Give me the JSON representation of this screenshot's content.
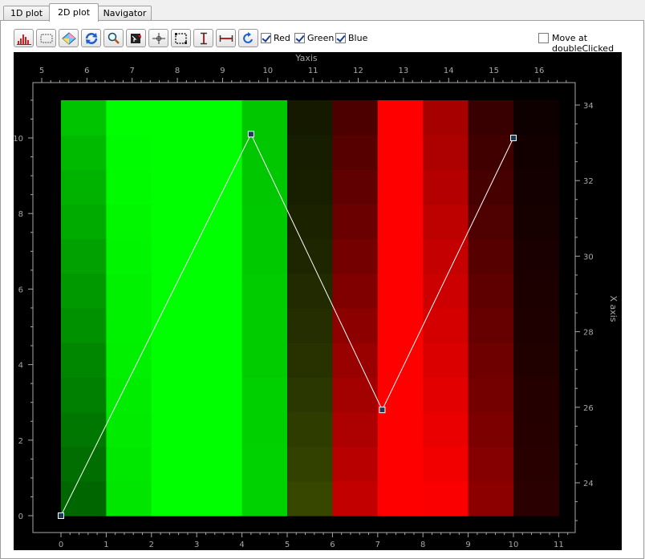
{
  "tabs": [
    {
      "label": "1D plot"
    },
    {
      "label": "2D plot"
    },
    {
      "label": "Navigator"
    }
  ],
  "active_tab": "2D plot",
  "toolbar": {
    "tools": [
      "histogram-icon",
      "selection-rect-icon",
      "color-palette-icon",
      "refresh-icon",
      "zoom-icon",
      "fit-view-icon",
      "crosshair-icon",
      "roi-rect-icon",
      "vertical-cursor-icon",
      "horizontal-cursor-icon",
      "redraw-icon"
    ],
    "channels": [
      {
        "label": "Red",
        "checked": true
      },
      {
        "label": "Green",
        "checked": true
      },
      {
        "label": "Blue",
        "checked": true
      }
    ],
    "move_option": {
      "label": "Move at doubleClicked",
      "checked": false
    }
  },
  "plot": {
    "top_axis": {
      "label": "Yaxis",
      "ticks": [
        "5",
        "6",
        "7",
        "8",
        "9",
        "10",
        "11",
        "12",
        "13",
        "14",
        "15",
        "16"
      ]
    },
    "bottom_axis": {
      "ticks": [
        "0",
        "1",
        "2",
        "3",
        "4",
        "5",
        "6",
        "7",
        "8",
        "9",
        "10",
        "11"
      ]
    },
    "left_axis": {
      "ticks": [
        "0",
        "2",
        "4",
        "6",
        "8",
        "10"
      ]
    },
    "right_axis": {
      "label": "X axis",
      "ticks": [
        "24",
        "26",
        "28",
        "30",
        "32",
        "34"
      ]
    },
    "heatmap_columns": [
      {
        "x": 0,
        "channel": "green",
        "intensity": [
          0.4,
          0.43,
          0.47,
          0.5,
          0.53,
          0.57,
          0.6,
          0.63,
          0.67,
          0.7,
          0.73,
          0.77
        ]
      },
      {
        "x": 1,
        "channel": "green",
        "intensity": [
          0.9,
          0.91,
          0.92,
          0.93,
          0.94,
          0.95,
          0.95,
          0.96,
          0.97,
          0.98,
          0.99,
          1.0
        ]
      },
      {
        "x": 2,
        "channel": "green",
        "intensity": [
          1,
          1,
          1,
          1,
          1,
          1,
          1,
          1,
          1,
          1,
          1,
          1
        ]
      },
      {
        "x": 3,
        "channel": "green",
        "intensity": [
          1,
          1,
          1,
          1,
          1,
          1,
          1,
          1,
          1,
          1,
          1,
          1
        ]
      },
      {
        "x": 4,
        "channel": "green",
        "intensity": [
          0.82,
          0.82,
          0.81,
          0.81,
          0.8,
          0.8,
          0.8,
          0.79,
          0.79,
          0.78,
          0.78,
          0.78
        ]
      },
      {
        "x": 5,
        "channel": "mixed",
        "intensity": [
          0.62,
          0.57,
          0.52,
          0.48,
          0.44,
          0.4,
          0.37,
          0.33,
          0.3,
          0.27,
          0.25,
          0.22
        ]
      },
      {
        "x": 6,
        "channel": "red",
        "intensity": [
          0.76,
          0.72,
          0.68,
          0.64,
          0.6,
          0.55,
          0.5,
          0.46,
          0.42,
          0.38,
          0.34,
          0.3
        ]
      },
      {
        "x": 7,
        "channel": "red",
        "intensity": [
          1,
          1,
          1,
          1,
          1,
          1,
          1,
          1,
          1,
          1,
          1,
          1
        ]
      },
      {
        "x": 8,
        "channel": "red",
        "intensity": [
          0.98,
          0.95,
          0.92,
          0.89,
          0.86,
          0.83,
          0.8,
          0.77,
          0.74,
          0.71,
          0.68,
          0.65
        ]
      },
      {
        "x": 9,
        "channel": "red",
        "intensity": [
          0.55,
          0.52,
          0.49,
          0.46,
          0.43,
          0.4,
          0.37,
          0.34,
          0.31,
          0.28,
          0.25,
          0.22
        ]
      },
      {
        "x": 10,
        "channel": "red",
        "intensity": [
          0.17,
          0.16,
          0.15,
          0.14,
          0.13,
          0.12,
          0.11,
          0.1,
          0.09,
          0.08,
          0.07,
          0.06
        ]
      }
    ],
    "polyline_points": [
      {
        "x": 0,
        "y": 0
      },
      {
        "x": 4.2,
        "y": 10.1
      },
      {
        "x": 7.1,
        "y": 2.8
      },
      {
        "x": 10,
        "y": 10
      }
    ],
    "colors": {
      "background": "#000000",
      "axis": "#a8a8a8",
      "polyline": "#ffffff"
    }
  }
}
